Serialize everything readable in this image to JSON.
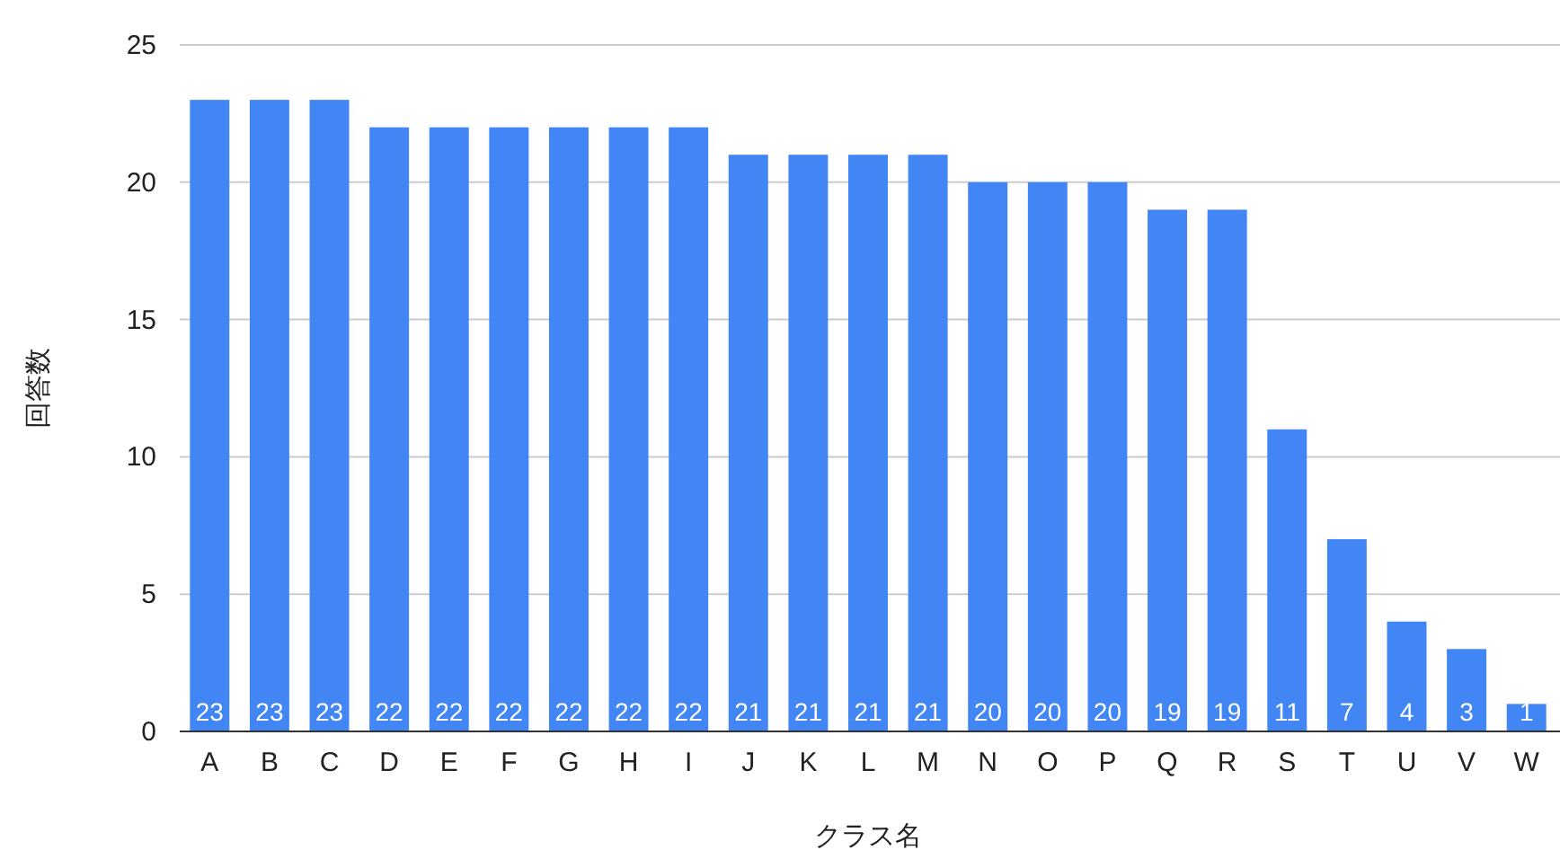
{
  "chart_data": {
    "type": "bar",
    "xlabel": "クラス名",
    "ylabel": "回答数",
    "categories": [
      "A",
      "B",
      "C",
      "D",
      "E",
      "F",
      "G",
      "H",
      "I",
      "J",
      "K",
      "L",
      "M",
      "N",
      "O",
      "P",
      "Q",
      "R",
      "S",
      "T",
      "U",
      "V",
      "W"
    ],
    "values": [
      23,
      23,
      23,
      22,
      22,
      22,
      22,
      22,
      22,
      21,
      21,
      21,
      21,
      20,
      20,
      20,
      19,
      19,
      11,
      7,
      4,
      3,
      1
    ],
    "color": "#4285f4",
    "ylim": [
      0,
      25
    ],
    "yticks": [
      0,
      5,
      10,
      15,
      20,
      25
    ],
    "grid": "y",
    "data_labels": true
  }
}
